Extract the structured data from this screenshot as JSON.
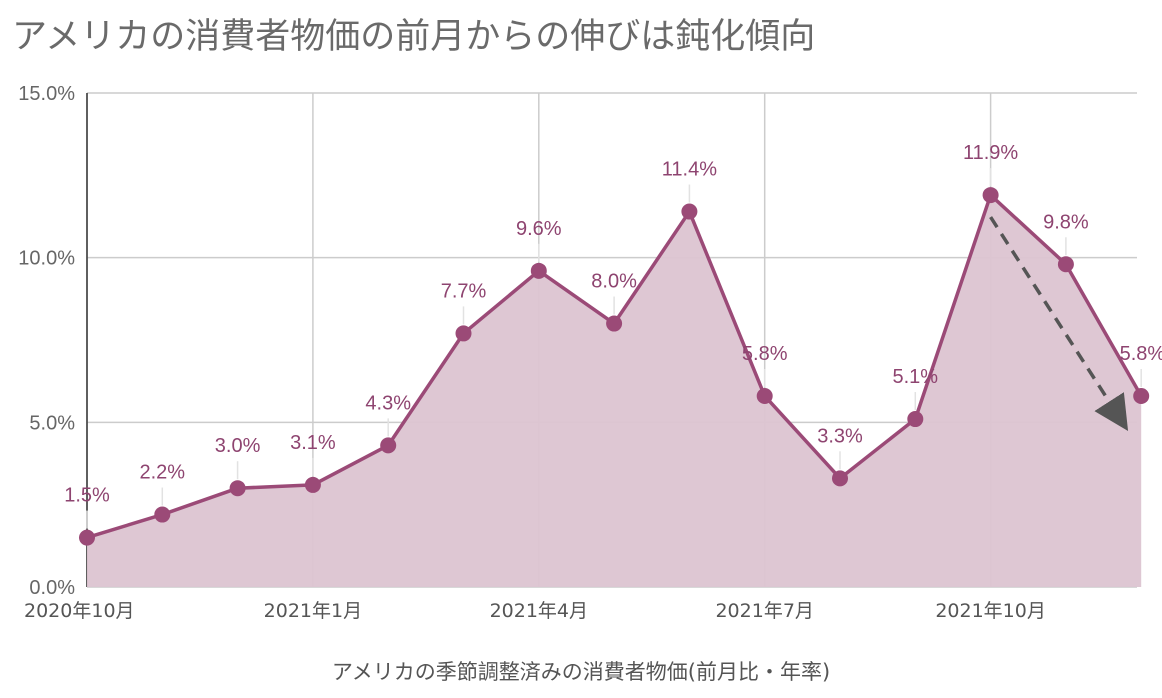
{
  "chart_data": {
    "type": "area",
    "title": "アメリカの消費者物価の前月からの伸びは鈍化傾向",
    "xlabel": "アメリカの季節調整済みの消費者物価(前月比・年率)",
    "ylabel": "",
    "ylim": [
      0,
      15
    ],
    "yticks": [
      "0.0%",
      "5.0%",
      "10.0%",
      "15.0%"
    ],
    "ytick_values": [
      0,
      5,
      10,
      15
    ],
    "x_tick_labels": [
      "2020年10月",
      "2021年1月",
      "2021年4月",
      "2021年7月",
      "2021年10月"
    ],
    "x_tick_index": [
      0,
      3,
      6,
      9,
      12
    ],
    "categories": [
      "2020-10",
      "2020-11",
      "2020-12",
      "2021-01",
      "2021-02",
      "2021-03",
      "2021-04",
      "2021-05",
      "2021-06",
      "2021-07",
      "2021-08",
      "2021-09",
      "2021-10",
      "2021-11",
      "2021-12"
    ],
    "values": [
      1.5,
      2.2,
      3.0,
      3.1,
      4.3,
      7.7,
      9.6,
      8.0,
      11.4,
      5.8,
      3.3,
      5.1,
      11.9,
      9.8,
      5.8
    ],
    "data_labels": [
      "1.5%",
      "2.2%",
      "3.0%",
      "3.1%",
      "4.3%",
      "7.7%",
      "9.6%",
      "8.0%",
      "11.4%",
      "5.8%",
      "3.3%",
      "5.1%",
      "11.9%",
      "9.8%",
      "5.8%"
    ],
    "grid": true,
    "colors": {
      "line": "#9b4a77",
      "fill": "#dcc4d1",
      "label": "#8e4470",
      "arrow": "#555555"
    },
    "annotation": {
      "type": "dashed-arrow",
      "from_index": 12,
      "to": [
        13.7,
        5.0
      ]
    }
  }
}
